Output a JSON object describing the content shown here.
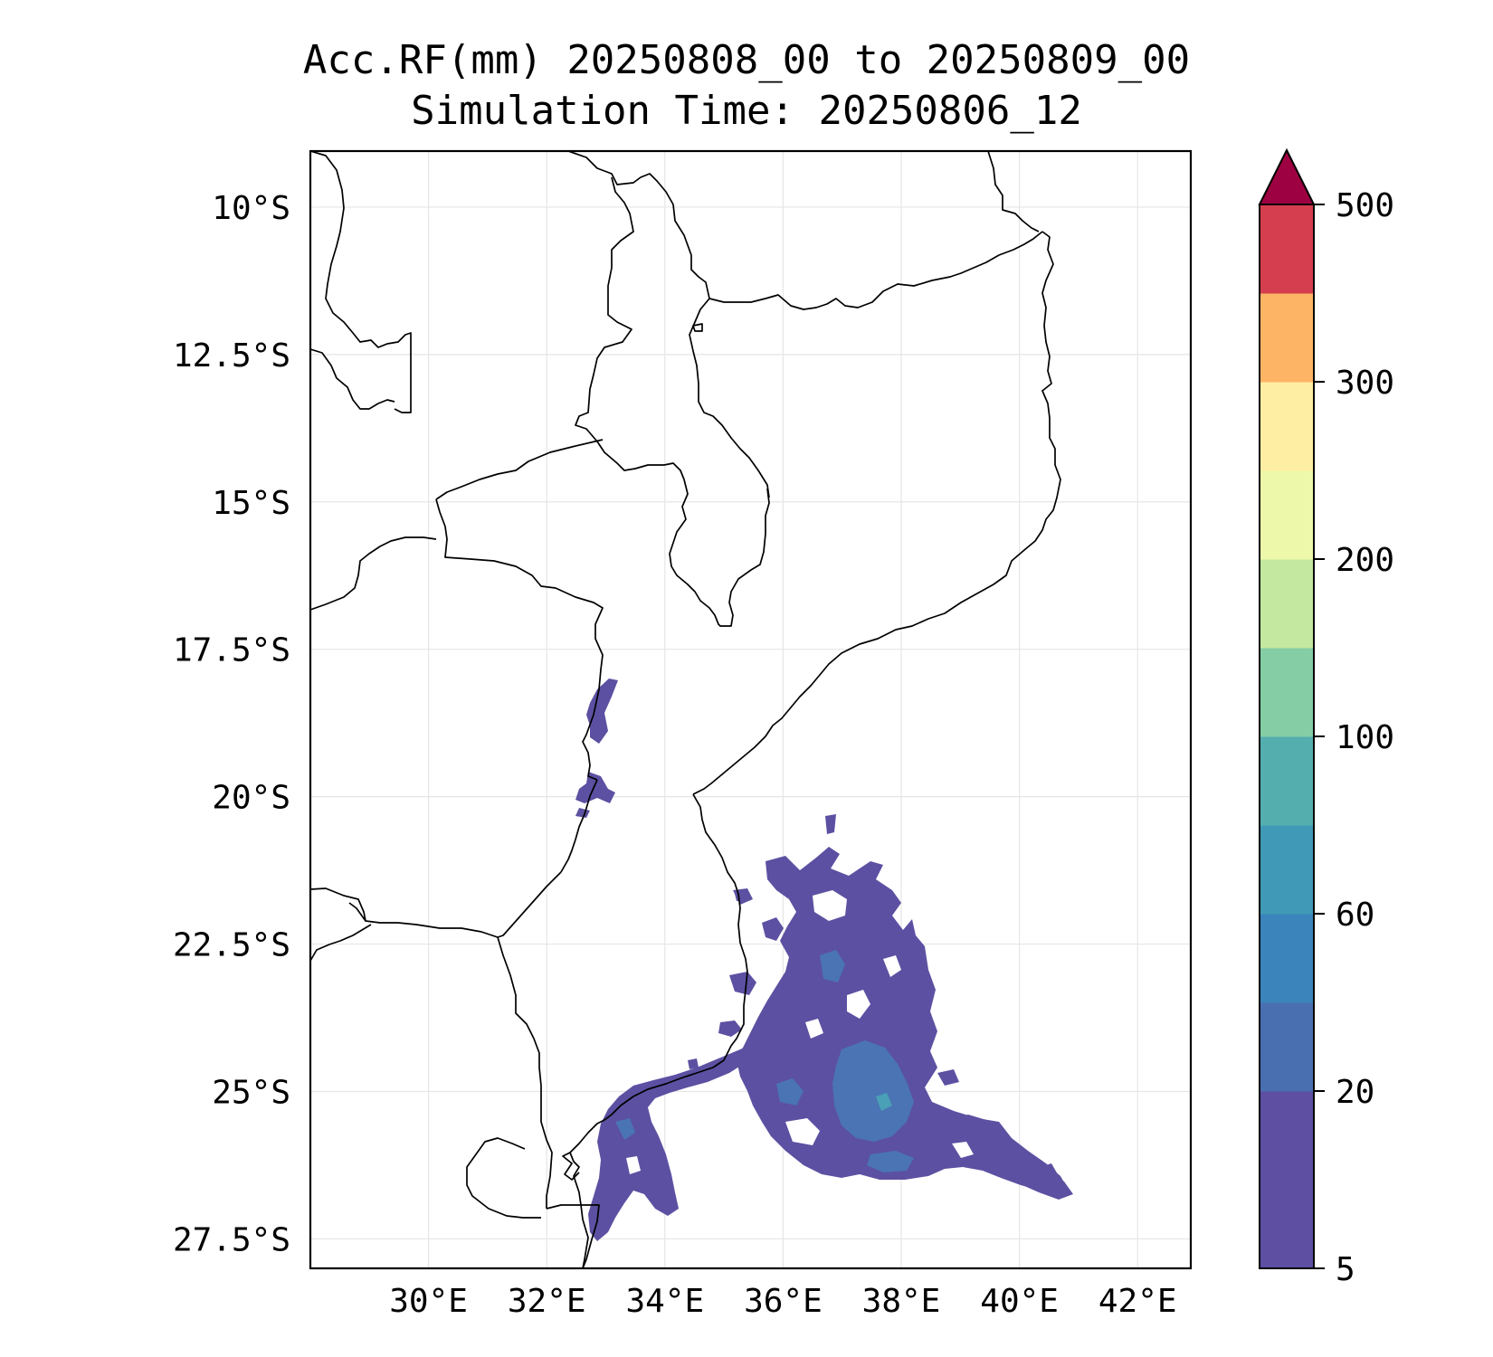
{
  "title": {
    "line1": "Acc.RF(mm) 20250808_00 to 20250809_00",
    "line2": "Simulation Time: 20250806_12"
  },
  "map": {
    "extent": {
      "lon_min": 28.0,
      "lon_max": 42.9,
      "lat_min": -28.0,
      "lat_max": -9.05
    },
    "lon_ticks": [
      {
        "value": 30,
        "label": "30°E"
      },
      {
        "value": 32,
        "label": "32°E"
      },
      {
        "value": 34,
        "label": "34°E"
      },
      {
        "value": 36,
        "label": "36°E"
      },
      {
        "value": 38,
        "label": "38°E"
      },
      {
        "value": 40,
        "label": "40°E"
      },
      {
        "value": 42,
        "label": "42°E"
      }
    ],
    "lat_ticks": [
      {
        "value": -10,
        "label": "10°S"
      },
      {
        "value": -12.5,
        "label": "12.5°S"
      },
      {
        "value": -15,
        "label": "15°S"
      },
      {
        "value": -17.5,
        "label": "17.5°S"
      },
      {
        "value": -20,
        "label": "20°S"
      },
      {
        "value": -22.5,
        "label": "22.5°S"
      },
      {
        "value": -25,
        "label": "25°S"
      },
      {
        "value": -27.5,
        "label": "27.5°S"
      }
    ],
    "grid": true,
    "colors": {
      "rain_main": "#5c50a2",
      "rain_core": "#4a74b4",
      "rain_peak": "#4aa0b6"
    }
  },
  "colorbar": {
    "extend": "max",
    "levels": [
      5,
      10,
      20,
      40,
      60,
      80,
      100,
      150,
      200,
      250,
      300,
      400,
      500
    ],
    "colors": [
      "#5e4fa2",
      "#5e4fa2",
      "#4a6fb1",
      "#3a84bb",
      "#4099b6",
      "#54aeae",
      "#84cda5",
      "#c4e89f",
      "#eef8aa",
      "#feeea3",
      "#fdb465",
      "#d53e4f"
    ],
    "over_color": "#9e0142",
    "tick_labels": [
      {
        "value": 5,
        "label": "5"
      },
      {
        "value": 20,
        "label": "20"
      },
      {
        "value": 60,
        "label": "60"
      },
      {
        "value": 100,
        "label": "100"
      },
      {
        "value": 200,
        "label": "200"
      },
      {
        "value": 300,
        "label": "300"
      },
      {
        "value": 500,
        "label": "500"
      }
    ]
  }
}
